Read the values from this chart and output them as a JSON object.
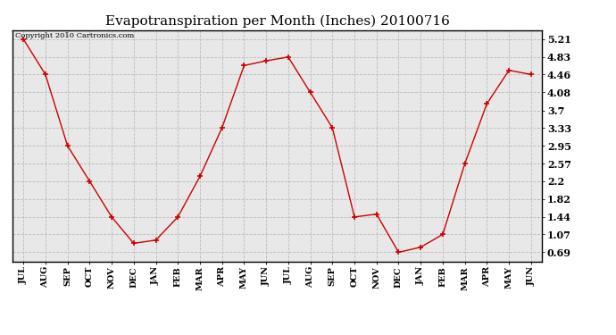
{
  "title": "Evapotranspiration per Month (Inches) 20100716",
  "copyright": "Copyright 2010 Cartronics.com",
  "months": [
    "JUL",
    "AUG",
    "SEP",
    "OCT",
    "NOV",
    "DEC",
    "JAN",
    "FEB",
    "MAR",
    "APR",
    "MAY",
    "JUN",
    "JUL",
    "AUG",
    "SEP",
    "OCT",
    "NOV",
    "DEC",
    "JAN",
    "FEB",
    "MAR",
    "APR",
    "MAY",
    "JUN"
  ],
  "values": [
    5.21,
    4.46,
    2.95,
    2.2,
    1.44,
    0.88,
    0.95,
    1.44,
    2.3,
    3.33,
    4.65,
    4.75,
    4.83,
    4.08,
    3.33,
    1.44,
    1.5,
    0.69,
    0.8,
    1.07,
    2.57,
    3.84,
    4.55,
    4.46
  ],
  "yticks": [
    0.69,
    1.07,
    1.44,
    1.82,
    2.2,
    2.57,
    2.95,
    3.33,
    3.7,
    4.08,
    4.46,
    4.83,
    5.21
  ],
  "line_color": "#cc0000",
  "marker": "+",
  "marker_color": "#cc0000",
  "bg_color": "#ffffff",
  "plot_bg_color": "#e8e8e8",
  "grid_color": "#bbbbbb",
  "title_fontsize": 11,
  "copyright_fontsize": 6,
  "ytick_fontsize": 8,
  "xtick_fontsize": 7
}
